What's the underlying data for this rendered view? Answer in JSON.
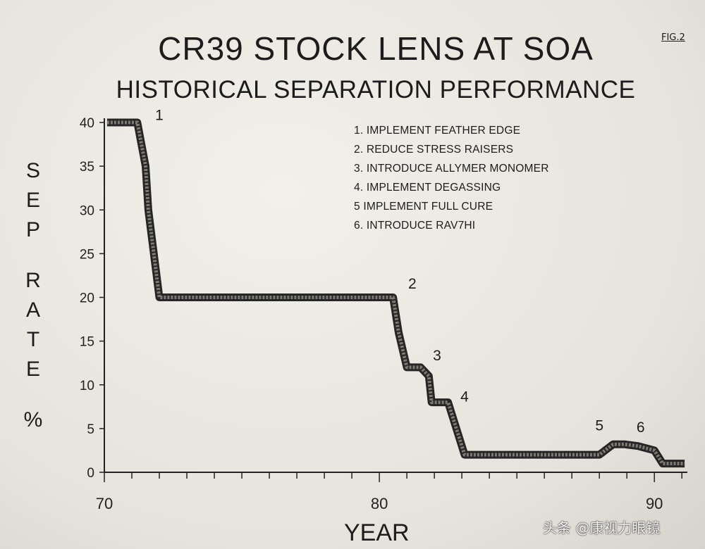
{
  "figure_label": "FIG.2",
  "watermark": "头条 @康视力眼镜",
  "chart_data": {
    "type": "line",
    "title": "CR39 STOCK LENS AT SOA",
    "subtitle": "HISTORICAL SEPARATION PERFORMANCE",
    "xlabel": "YEAR",
    "ylabel": [
      "SEP",
      "RATE",
      "%"
    ],
    "xlim": [
      70,
      91.2
    ],
    "ylim": [
      0,
      40
    ],
    "x_ticks": [
      70,
      80,
      90
    ],
    "y_ticks": [
      0,
      5,
      10,
      15,
      20,
      25,
      30,
      35,
      40
    ],
    "grid": false,
    "legend_position": "top-right",
    "series": [
      {
        "x": [
          70.1,
          71.2,
          71.5,
          71.6,
          72.0,
          80.5,
          80.7,
          81.0,
          81.3,
          81.5,
          81.8,
          81.9,
          82.4,
          82.5,
          83.1,
          83.3,
          88.0,
          88.5,
          88.9,
          89.4,
          90.0,
          90.3,
          90.6,
          91.1
        ],
        "y": [
          40,
          40,
          35,
          30,
          20,
          20,
          16,
          12,
          12,
          12,
          11,
          8,
          8,
          8,
          2,
          2,
          2,
          3.2,
          3.2,
          3.0,
          2.5,
          1.0,
          1.0,
          1.0
        ]
      }
    ],
    "annotations": [
      {
        "label": "1",
        "x": 72.0,
        "y": 40.3
      },
      {
        "label": "2",
        "x": 81.2,
        "y": 21.0
      },
      {
        "label": "3",
        "x": 82.1,
        "y": 12.8
      },
      {
        "label": "4",
        "x": 83.1,
        "y": 8.1
      },
      {
        "label": "5",
        "x": 88.0,
        "y": 4.8
      },
      {
        "label": "6",
        "x": 89.5,
        "y": 4.6
      }
    ],
    "legend_entries": [
      "1. IMPLEMENT FEATHER EDGE",
      "2. REDUCE STRESS RAISERS",
      "3. INTRODUCE  ALLYMER MONOMER",
      "4. IMPLEMENT DEGASSING",
      "5 IMPLEMENT FULL CURE",
      "6. INTRODUCE RAV7HI"
    ]
  }
}
